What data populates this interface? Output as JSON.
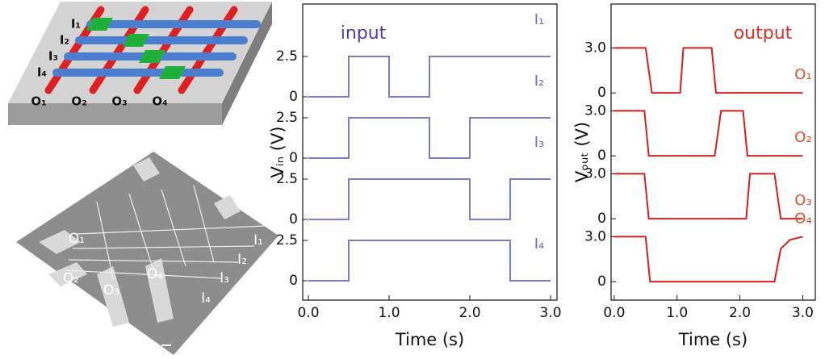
{
  "schematic": {
    "inputs": [
      "I₁",
      "I₂",
      "I₃",
      "I₄"
    ],
    "outputs": [
      "O₁",
      "O₂",
      "O₃",
      "O₄"
    ]
  },
  "micrograph": {
    "inputs": [
      "I₁",
      "I₂",
      "I₃",
      "I₄"
    ],
    "outputs": [
      "O₁",
      "O₂",
      "O₃",
      "O₄"
    ]
  },
  "chart_data": [
    {
      "type": "line",
      "title": "input",
      "xlabel": "Time (s)",
      "ylabel": "Vᵢₙ (V)",
      "xlim": [
        -0.07,
        3.08
      ],
      "xticks": [
        {
          "value": 0,
          "label": "0.0"
        },
        {
          "value": 1,
          "label": "1.0"
        },
        {
          "value": 2,
          "label": "2.0"
        },
        {
          "value": 3,
          "label": "3.0"
        }
      ],
      "title_color": "#4a3fa0",
      "label_color": "#6a6ac0",
      "series": [
        {
          "name": "I₁",
          "color": "#7b7bd0",
          "ylim": [
            -1,
            2.8
          ],
          "yticks": [
            0,
            2.5
          ],
          "x": [
            0,
            0.5,
            0.5,
            1.0,
            1.0,
            1.5,
            1.5,
            3.0
          ],
          "values": [
            0,
            0,
            2.5,
            2.5,
            0,
            0,
            2.5,
            2.5
          ]
        },
        {
          "name": "I₂",
          "color": "#7b7bd0",
          "ylim": [
            -1,
            2.8
          ],
          "yticks": [
            0,
            2.5
          ],
          "x": [
            0,
            0.5,
            0.5,
            1.5,
            1.5,
            2.0,
            2.0,
            3.0
          ],
          "values": [
            0,
            0,
            2.5,
            2.5,
            0,
            0,
            2.5,
            2.5
          ]
        },
        {
          "name": "I₃",
          "color": "#7b7bd0",
          "ylim": [
            -1,
            2.8
          ],
          "yticks": [
            0,
            2.5
          ],
          "x": [
            0,
            0.5,
            0.5,
            2.0,
            2.0,
            2.5,
            2.5,
            3.0
          ],
          "values": [
            0,
            0,
            2.5,
            2.5,
            0,
            0,
            2.5,
            2.5
          ]
        },
        {
          "name": "I₄",
          "color": "#7b7bd0",
          "ylim": [
            -1,
            2.8
          ],
          "yticks": [
            0,
            2.5
          ],
          "x": [
            0,
            0.5,
            0.5,
            2.5,
            2.5,
            3.0
          ],
          "values": [
            0,
            0,
            2.5,
            2.5,
            0,
            0
          ]
        }
      ]
    },
    {
      "type": "line",
      "title": "output",
      "xlabel": "Time (s)",
      "ylabel": "Vₒᵤₜ (V)",
      "xlim": [
        -0.05,
        3.2
      ],
      "xticks": [
        {
          "value": 0,
          "label": "0.0"
        },
        {
          "value": 1,
          "label": "1.0"
        },
        {
          "value": 2,
          "label": "2.0"
        },
        {
          "value": 3,
          "label": "3.0"
        }
      ],
      "title_color": "#d9302a",
      "label_color": "#e0502a",
      "series": [
        {
          "name": "O₁",
          "color": "#d42020",
          "ylim": [
            -0.8,
            3.4
          ],
          "yticks": [
            0,
            {
              "value": 3,
              "label": "3.0"
            }
          ],
          "x": [
            0,
            0.5,
            0.6,
            1.05,
            1.1,
            1.55,
            1.62,
            3.0
          ],
          "values": [
            3,
            3,
            0,
            0,
            3,
            3,
            0,
            0
          ]
        },
        {
          "name": "O₂",
          "color": "#d42020",
          "ylim": [
            -0.8,
            3.4
          ],
          "yticks": [
            0,
            {
              "value": 3,
              "label": "3.0"
            }
          ],
          "x": [
            0,
            0.48,
            0.55,
            1.6,
            1.7,
            2.05,
            2.12,
            3.0
          ],
          "values": [
            3,
            3,
            0,
            0,
            3,
            3,
            0,
            0
          ]
        },
        {
          "name": "O₃",
          "color": "#d42020",
          "ylim": [
            -0.8,
            3.4
          ],
          "yticks": [
            0,
            {
              "value": 3,
              "label": "3.0"
            }
          ],
          "x": [
            0,
            0.48,
            0.55,
            2.1,
            2.16,
            2.55,
            2.65,
            3.0
          ],
          "values": [
            3,
            3,
            0,
            0,
            3,
            3,
            0,
            0
          ]
        },
        {
          "name": "O₄",
          "color": "#d42020",
          "ylim": [
            -0.8,
            3.4
          ],
          "yticks": [
            0,
            {
              "value": 3,
              "label": "3.0"
            }
          ],
          "x": [
            0,
            0.5,
            0.57,
            2.55,
            2.65,
            2.8,
            3.0
          ],
          "values": [
            3,
            3,
            0,
            0,
            2.2,
            2.8,
            3
          ]
        }
      ]
    }
  ]
}
